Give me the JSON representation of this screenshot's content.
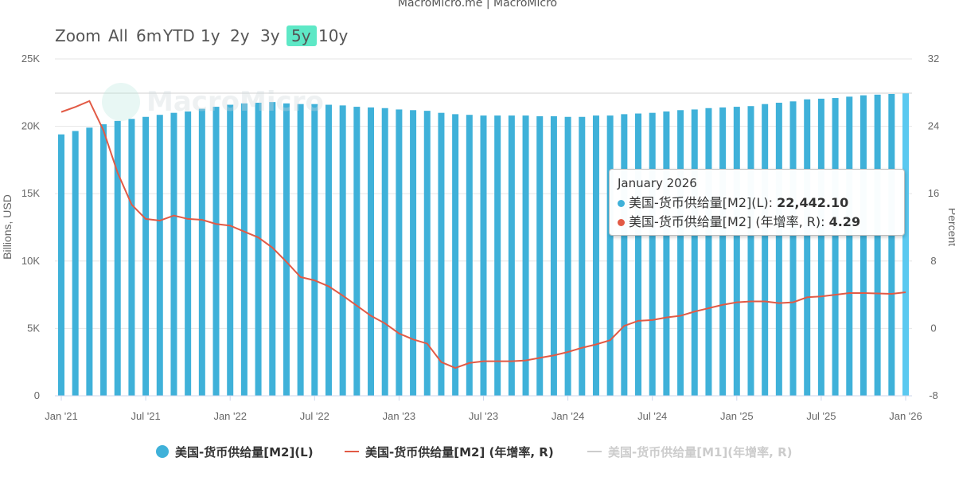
{
  "source": "MacroMicro.me | MacroMicro",
  "watermark": "MacroMicro",
  "zoom": {
    "label": "Zoom",
    "options": [
      "All",
      "6m",
      "YTD",
      "1y",
      "2y",
      "3y",
      "5y",
      "10y"
    ],
    "active": "5y"
  },
  "colors": {
    "bars": "#3fb1d9",
    "bars_highlight": "#5bc9f0",
    "yoy_line": "#e25a45",
    "m1_line_hidden": "#cccccc",
    "active_zoom_bg": "#5ee8c6"
  },
  "tooltip": {
    "date": "January 2026",
    "rows": [
      {
        "label": "美国-货币供给量[M2](L): ",
        "value": "22,442.10",
        "color": "#3fb1d9"
      },
      {
        "label": "美国-货币供给量[M2] (年增率, R): ",
        "value": "4.29",
        "color": "#e25a45"
      }
    ]
  },
  "legend": [
    {
      "label": "美国-货币供给量[M2](L)",
      "type": "dot",
      "color": "#3fb1d9",
      "visible": true
    },
    {
      "label": "美国-货币供给量[M2] (年增率, R)",
      "type": "line",
      "color": "#e25a45",
      "visible": true
    },
    {
      "label": "美国-货币供给量[M1](年增率, R)",
      "type": "line",
      "color": "#cccccc",
      "visible": false
    }
  ],
  "chart_data": {
    "type": "bar+line",
    "x_tick_labels": [
      "Jan '21",
      "Jul '21",
      "Jan '22",
      "Jul '22",
      "Jan '23",
      "Jul '23",
      "Jan '24",
      "Jul '24",
      "Jan '25",
      "Jul '25",
      "Jan '26"
    ],
    "x": [
      "2021-01",
      "2021-02",
      "2021-03",
      "2021-04",
      "2021-05",
      "2021-06",
      "2021-07",
      "2021-08",
      "2021-09",
      "2021-10",
      "2021-11",
      "2021-12",
      "2022-01",
      "2022-02",
      "2022-03",
      "2022-04",
      "2022-05",
      "2022-06",
      "2022-07",
      "2022-08",
      "2022-09",
      "2022-10",
      "2022-11",
      "2022-12",
      "2023-01",
      "2023-02",
      "2023-03",
      "2023-04",
      "2023-05",
      "2023-06",
      "2023-07",
      "2023-08",
      "2023-09",
      "2023-10",
      "2023-11",
      "2023-12",
      "2024-01",
      "2024-02",
      "2024-03",
      "2024-04",
      "2024-05",
      "2024-06",
      "2024-07",
      "2024-08",
      "2024-09",
      "2024-10",
      "2024-11",
      "2024-12",
      "2025-01",
      "2025-02",
      "2025-03",
      "2025-04",
      "2025-05",
      "2025-06",
      "2025-07",
      "2025-08",
      "2025-09",
      "2025-10",
      "2025-11",
      "2025-12",
      "2026-01"
    ],
    "left_axis": {
      "label": "Billions, USD",
      "min": 0,
      "max": 25000,
      "ticks": [
        "0",
        "5K",
        "10K",
        "15K",
        "20K",
        "25K"
      ]
    },
    "right_axis": {
      "label": "Percent",
      "min": -8,
      "max": 32,
      "ticks": [
        "-8",
        "0",
        "8",
        "16",
        "24",
        "32"
      ]
    },
    "series": [
      {
        "name": "美国-货币供给量[M2](L)",
        "type": "bar",
        "axis": "left",
        "values": [
          19400,
          19650,
          19900,
          20150,
          20400,
          20550,
          20700,
          20850,
          21000,
          21100,
          21300,
          21450,
          21600,
          21700,
          21750,
          21800,
          21700,
          21650,
          21650,
          21600,
          21550,
          21450,
          21400,
          21350,
          21250,
          21200,
          21150,
          21000,
          20900,
          20850,
          20800,
          20800,
          20800,
          20800,
          20750,
          20750,
          20700,
          20700,
          20800,
          20800,
          20900,
          20950,
          21000,
          21100,
          21200,
          21250,
          21350,
          21400,
          21450,
          21500,
          21650,
          21750,
          21850,
          22000,
          22050,
          22100,
          22200,
          22300,
          22350,
          22400,
          22442.1
        ]
      },
      {
        "name": "美国-货币供给量[M2] (年增率, R)",
        "type": "line",
        "axis": "right",
        "values": [
          25.7,
          26.3,
          27.0,
          23.5,
          18.5,
          14.7,
          13.0,
          12.8,
          13.4,
          13.0,
          12.9,
          12.4,
          12.2,
          11.5,
          10.8,
          9.6,
          7.9,
          6.1,
          5.7,
          5.0,
          3.9,
          2.7,
          1.5,
          0.6,
          -0.6,
          -1.3,
          -1.8,
          -4.0,
          -4.7,
          -4.1,
          -3.9,
          -3.9,
          -3.9,
          -3.8,
          -3.5,
          -3.2,
          -2.8,
          -2.3,
          -1.9,
          -1.4,
          0.3,
          0.9,
          1.0,
          1.3,
          1.5,
          2.0,
          2.4,
          2.8,
          3.1,
          3.2,
          3.2,
          3.0,
          3.1,
          3.7,
          3.8,
          4.0,
          4.2,
          4.2,
          4.15,
          4.1,
          4.29
        ]
      }
    ],
    "grid": "horizontal",
    "legend_position": "bottom"
  }
}
